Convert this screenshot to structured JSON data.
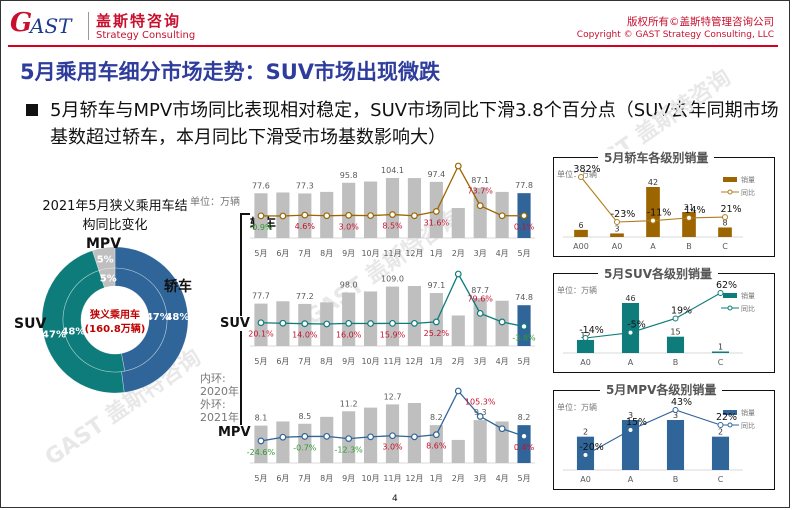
{
  "header": {
    "logo_mark": "G",
    "logo_text": "AST",
    "company_cn": "盖斯特咨询",
    "company_en": "Strategy Consulting",
    "copyright_cn": "版权所有©盖斯特管理咨询公司",
    "copyright_en": "Copyright © GAST Strategy Consulting, LLC"
  },
  "slide": {
    "title": "5月乘用车细分市场走势：SUV市场出现微跌",
    "bullet": "5月轿车与MPV市场同比表现相对稳定，SUV市场同比下滑3.8个百分点（SUV去年同期市场基数超过轿车，本月同比下滑受市场基数影响大）",
    "page_number": "4",
    "watermark": "GAST 盖斯特咨询"
  },
  "colors": {
    "sedan": "#2f6599",
    "suv": "#0e7c7b",
    "mpv": "#bfbfbf",
    "sedan_sub": "#9c6500",
    "mpv_sub": "#2f6599",
    "positive_growth": "#c8102e",
    "negative_growth": "#2e9b2e",
    "title_blue": "#2e3c9c"
  },
  "chart_data": [
    {
      "id": "structure_donut",
      "type": "pie",
      "title": "2021年5月狭义乘用车结构同比变化",
      "center_label": "狭义乘用车",
      "center_sub": "(160.8万辆)",
      "ring_note": [
        "内环:",
        "2020年",
        "外环:",
        "2021年"
      ],
      "categories": [
        "轿车",
        "SUV",
        "MPV"
      ],
      "series": [
        {
          "name": "2020年(内环)",
          "values": [
            47,
            48,
            5
          ],
          "labels": [
            "47%",
            "48%",
            "5%"
          ]
        },
        {
          "name": "2021年(外环)",
          "values": [
            48,
            47,
            5
          ],
          "labels": [
            "48%",
            "47%",
            "5%"
          ]
        }
      ]
    },
    {
      "id": "sedan_monthly",
      "type": "bar",
      "label": "轿车",
      "unit": "单位：万辆",
      "categories": [
        "5月",
        "6月",
        "7月",
        "8月",
        "9月",
        "10月",
        "11月",
        "12月",
        "1月",
        "2月",
        "3月",
        "4月",
        "5月"
      ],
      "values": [
        77.6,
        79,
        77.3,
        80,
        95.8,
        98,
        104.1,
        104,
        97.4,
        52,
        87.1,
        80,
        77.8
      ],
      "value_labels": [
        "77.6",
        "",
        "77.3",
        "",
        "95.8",
        "",
        "104.1",
        "",
        "97.4",
        "",
        "87.1",
        "",
        "77.8"
      ],
      "growth": [
        -0.9,
        -2,
        4.6,
        0,
        3.0,
        1,
        8.5,
        0,
        31.6,
        365,
        73.7,
        0,
        0.1
      ],
      "growth_labels": [
        "-0.9%",
        "",
        "4.6%",
        "",
        "3.0%",
        "",
        "8.5%",
        "",
        "31.6%",
        "",
        "73.7%",
        "",
        "0.1%"
      ],
      "highlight_last": true
    },
    {
      "id": "suv_monthly",
      "type": "bar",
      "label": "SUV",
      "categories": [
        "5月",
        "6月",
        "7月",
        "8月",
        "9月",
        "10月",
        "11月",
        "12月",
        "1月",
        "2月",
        "3月",
        "4月",
        "5月"
      ],
      "values": [
        77.7,
        82,
        77.2,
        80,
        98.0,
        100,
        109.0,
        110,
        97.1,
        56,
        87.7,
        83,
        74.8
      ],
      "value_labels": [
        "77.7",
        "",
        "77.2",
        "",
        "98.0",
        "",
        "109.0",
        "",
        "97.1",
        "",
        "87.7",
        "",
        "74.8"
      ],
      "growth": [
        20.1,
        17,
        14.0,
        12,
        16.0,
        15,
        15.9,
        16,
        25.2,
        330,
        79.6,
        25,
        -3.8
      ],
      "growth_labels": [
        "20.1%",
        "",
        "14.0%",
        "",
        "16.0%",
        "",
        "15.9%",
        "",
        "25.2%",
        "",
        "79.6%",
        "",
        "-3.8%"
      ],
      "highlight_last": true
    },
    {
      "id": "mpv_monthly",
      "type": "bar",
      "label": "MPV",
      "categories": [
        "5月",
        "6月",
        "7月",
        "8月",
        "9月",
        "10月",
        "11月",
        "12月",
        "1月",
        "2月",
        "3月",
        "4月",
        "5月"
      ],
      "values": [
        8.1,
        9,
        8.5,
        10,
        11.2,
        12,
        12.7,
        13,
        8.2,
        5,
        9.3,
        9,
        8.2
      ],
      "value_labels": [
        "8.1",
        "",
        "8.5",
        "",
        "11.2",
        "",
        "12.7",
        "",
        "8.2",
        "",
        "9.3",
        "",
        "8.2"
      ],
      "growth": [
        -24.6,
        -5,
        -0.7,
        -0.5,
        -12.3,
        -3,
        3.0,
        -3,
        8.6,
        240,
        105.3,
        40,
        0.4
      ],
      "growth_labels": [
        "-24.6%",
        "",
        "-0.7%",
        "",
        "-12.3%",
        "",
        "3.0%",
        "",
        "8.6%",
        "",
        "105.3%",
        "",
        "0.4%"
      ],
      "highlight_last": true
    },
    {
      "id": "sedan_by_class",
      "type": "bar",
      "title": "5月轿车各级别销量",
      "unit": "单位：万辆",
      "legend": [
        "销量",
        "同比"
      ],
      "categories": [
        "A00",
        "A0",
        "A",
        "B",
        "C"
      ],
      "values": [
        6,
        3,
        42,
        21,
        8
      ],
      "growth": [
        382,
        -23,
        -11,
        14,
        21
      ],
      "growth_labels": [
        "382%",
        "-23%",
        "-11%",
        "14%",
        "21%"
      ]
    },
    {
      "id": "suv_by_class",
      "type": "bar",
      "title": "5月SUV各级别销量",
      "unit": "单位：万辆",
      "legend": [
        "销量",
        "同比"
      ],
      "categories": [
        "A0",
        "A",
        "B",
        "C"
      ],
      "values": [
        12,
        46,
        15,
        1
      ],
      "growth": [
        -14,
        -5,
        19,
        62
      ],
      "growth_labels": [
        "-14%",
        "-5%",
        "19%",
        "62%"
      ]
    },
    {
      "id": "mpv_by_class",
      "type": "bar",
      "title": "5月MPV各级别销量",
      "unit": "单位：万辆",
      "legend": [
        "销量",
        "同比"
      ],
      "categories": [
        "A0",
        "A",
        "B",
        "C"
      ],
      "values": [
        2,
        3,
        3,
        2
      ],
      "growth": [
        -20,
        15,
        43,
        22
      ],
      "growth_labels": [
        "-20%",
        "15%",
        "43%",
        "22%"
      ]
    }
  ]
}
